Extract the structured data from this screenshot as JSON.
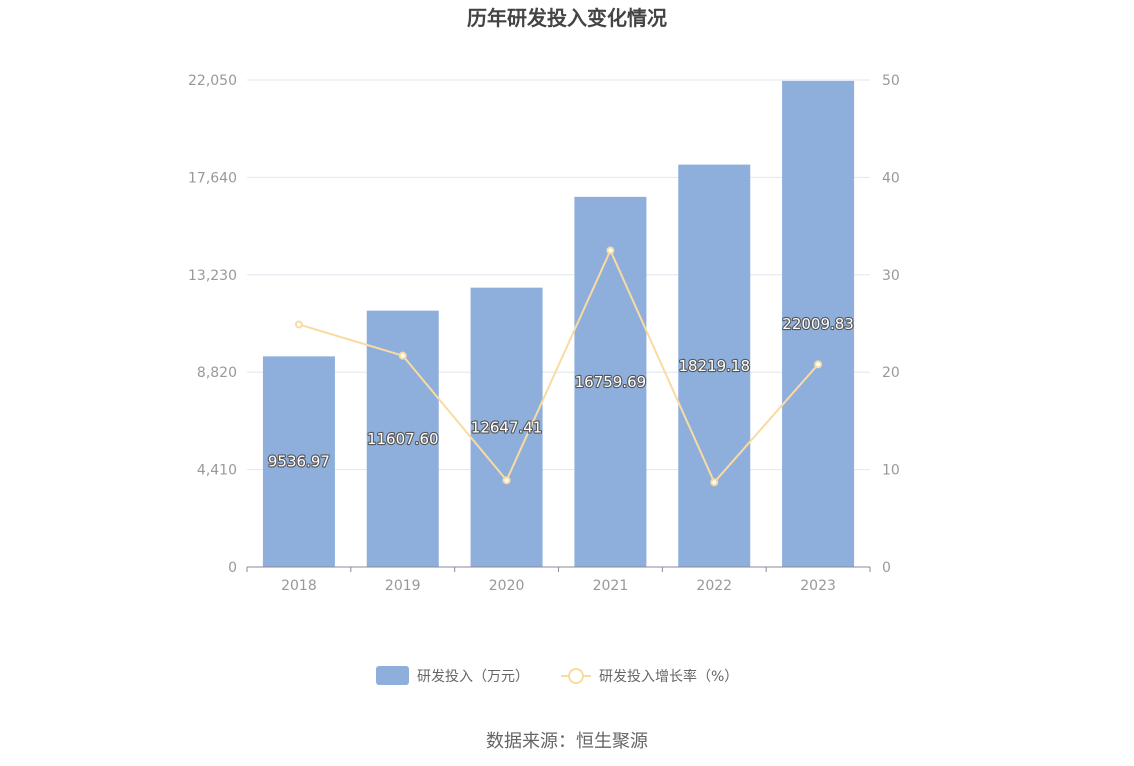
{
  "chart_data": {
    "type": "bar",
    "title": "历年研发投入变化情况",
    "categories": [
      "2018",
      "2019",
      "2020",
      "2021",
      "2022",
      "2023"
    ],
    "series": [
      {
        "name": "研发投入（万元）",
        "type": "bar",
        "axis": "left",
        "color": "#8eaedb",
        "values": [
          9536.97,
          11607.6,
          12647.41,
          16759.69,
          18219.18,
          22009.83
        ],
        "labels": [
          "9536.97",
          "11607.60",
          "12647.41",
          "16759.69",
          "18219.18",
          "22009.83"
        ]
      },
      {
        "name": "研发投入增长率（%）",
        "type": "line",
        "axis": "right",
        "color": "#f9dba2",
        "values": [
          24.9,
          21.7,
          8.9,
          32.5,
          8.7,
          20.8
        ]
      }
    ],
    "y_left": {
      "min": 0,
      "max": 22050,
      "ticks": [
        "0",
        "4,410",
        "8,820",
        "13,230",
        "17,640",
        "22,050"
      ]
    },
    "y_right": {
      "min": 0,
      "max": 50,
      "ticks": [
        "0",
        "10",
        "20",
        "30",
        "40",
        "50"
      ]
    },
    "grid": true,
    "legend_position": "bottom"
  },
  "footer": {
    "source": "数据来源：恒生聚源"
  }
}
